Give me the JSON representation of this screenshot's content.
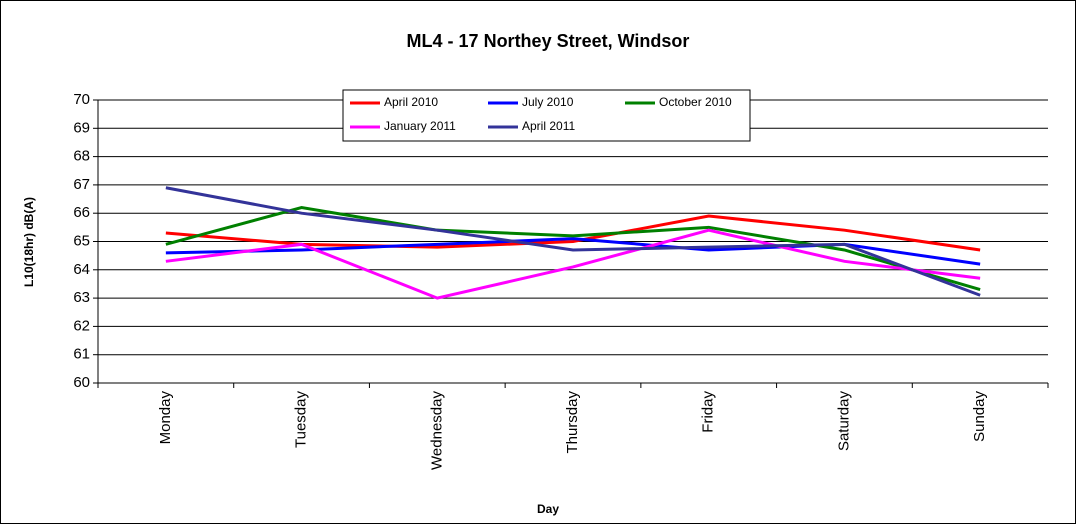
{
  "chart_data": {
    "type": "line",
    "title": "ML4 - 17 Northey Street, Windsor",
    "x_label": "Day",
    "y_label": "L10(18hr) dB(A)",
    "categories": [
      "Monday",
      "Tuesday",
      "Wednesday",
      "Thursday",
      "Friday",
      "Saturday",
      "Sunday"
    ],
    "series": [
      {
        "name": "April 2010",
        "color": "#ff0000",
        "values": [
          65.3,
          64.9,
          64.8,
          65.0,
          65.9,
          65.4,
          64.7
        ]
      },
      {
        "name": "July 2010",
        "color": "#0000ff",
        "values": [
          64.6,
          64.7,
          64.9,
          65.1,
          64.7,
          64.9,
          64.2
        ]
      },
      {
        "name": "October 2010",
        "color": "#008000",
        "values": [
          64.9,
          66.2,
          65.4,
          65.2,
          65.5,
          64.7,
          63.3
        ]
      },
      {
        "name": "January 2011",
        "color": "#ff00ff",
        "values": [
          64.3,
          64.9,
          63.0,
          64.1,
          65.4,
          64.3,
          63.7
        ]
      },
      {
        "name": "April 2011",
        "color": "#333399",
        "values": [
          66.9,
          66.0,
          65.4,
          64.7,
          64.8,
          64.9,
          63.1
        ]
      }
    ],
    "ylim": [
      60,
      70
    ],
    "yticks": [
      60,
      61,
      62,
      63,
      64,
      65,
      66,
      67,
      68,
      69,
      70
    ],
    "grid": true,
    "legend": "top"
  }
}
